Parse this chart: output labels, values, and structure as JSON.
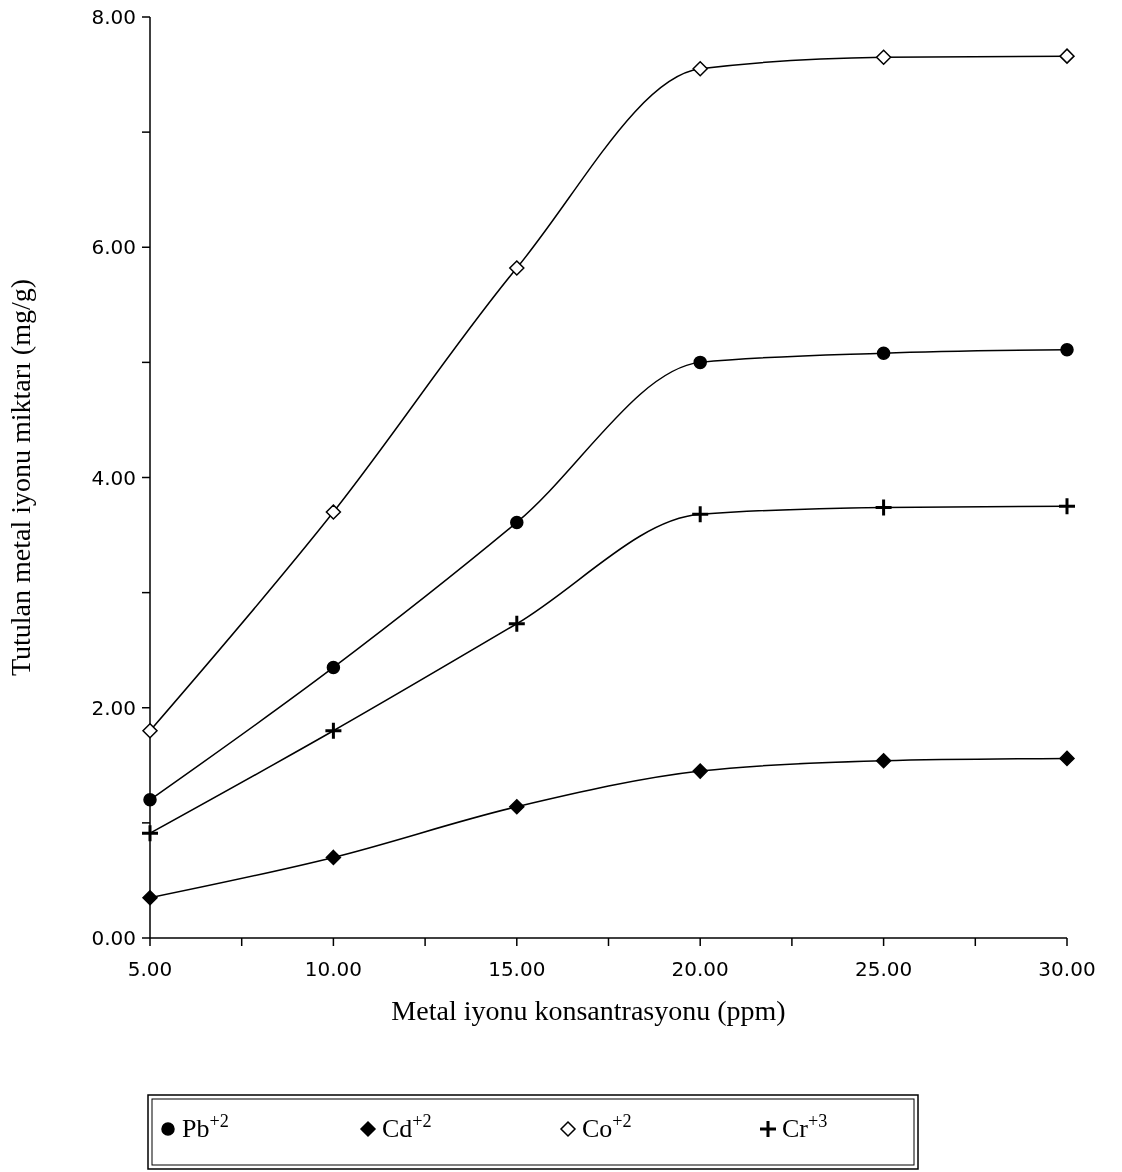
{
  "chart_data": {
    "type": "line",
    "xlabel": "Metal iyonu konsantrasyonu (ppm)",
    "ylabel": "Tutulan metal iyonu miktarı (mg/g)",
    "x": [
      5,
      10,
      15,
      20,
      25,
      30
    ],
    "xlim": [
      5,
      30
    ],
    "xticks": [
      {
        "value": 5,
        "label": "5.00"
      },
      {
        "value": 7.5,
        "label": null
      },
      {
        "value": 10,
        "label": "10.00"
      },
      {
        "value": 12.5,
        "label": null
      },
      {
        "value": 15,
        "label": "15.00"
      },
      {
        "value": 17.5,
        "label": null
      },
      {
        "value": 20,
        "label": "20.00"
      },
      {
        "value": 22.5,
        "label": null
      },
      {
        "value": 25,
        "label": "25.00"
      },
      {
        "value": 27.5,
        "label": null
      },
      {
        "value": 30,
        "label": "30.00"
      }
    ],
    "ylim": [
      0,
      8
    ],
    "yticks": [
      {
        "value": 0,
        "label": "0.00"
      },
      {
        "value": 1,
        "label": null
      },
      {
        "value": 2,
        "label": "2.00"
      },
      {
        "value": 3,
        "label": null
      },
      {
        "value": 4,
        "label": "4.00"
      },
      {
        "value": 5,
        "label": null
      },
      {
        "value": 6,
        "label": "6.00"
      },
      {
        "value": 7,
        "label": null
      },
      {
        "value": 8,
        "label": "8.00"
      }
    ],
    "grid": false,
    "legend": "bottom",
    "line_style": "solid",
    "series": [
      {
        "name": "Pb$^{+2}$",
        "color": "#000000",
        "marker": "circle",
        "values": [
          1.2,
          2.35,
          3.61,
          5.0,
          5.08,
          5.11
        ]
      },
      {
        "name": "Cd$^{+2}$",
        "color": "#000000",
        "marker": "diamond",
        "values": [
          0.35,
          0.7,
          1.14,
          1.45,
          1.54,
          1.56
        ]
      },
      {
        "name": "Co$^{+2}$",
        "color": "#000000",
        "marker": "diamond",
        "values": [
          1.8,
          3.7,
          5.82,
          7.55,
          7.65,
          7.66
        ]
      },
      {
        "name": "Cr$^{+3}$",
        "color": "#000000",
        "marker": "cross",
        "values": [
          0.91,
          1.8,
          2.73,
          3.68,
          3.74,
          3.75
        ]
      }
    ]
  }
}
